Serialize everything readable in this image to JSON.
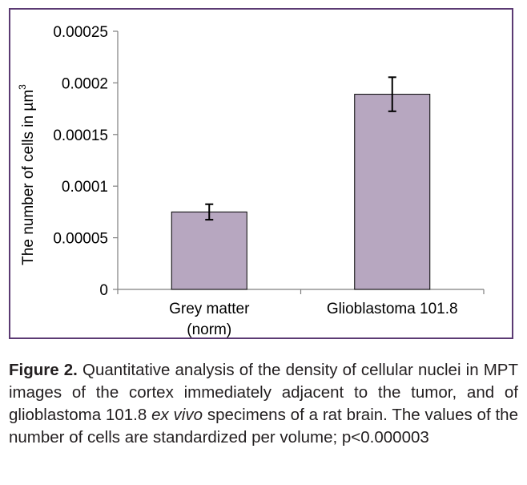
{
  "chart_data": {
    "type": "bar",
    "categories": [
      "Grey matter\n(norm)",
      "Glioblastoma 101.8"
    ],
    "values": [
      7.5e-05,
      0.000189
    ],
    "error": [
      7.5e-06,
      1.65e-05
    ],
    "ylabel": "The number of cells in µm",
    "ylabel_sup": "3",
    "ylim": [
      0,
      0.00025
    ],
    "yticks": [
      0,
      5e-05,
      0.0001,
      0.00015,
      0.0002,
      0.00025
    ],
    "ytick_labels": [
      "0",
      "0.00005",
      "0.0001",
      "0.00015",
      "0.0002",
      "0.00025"
    ],
    "bar_color": "#b7a7c0",
    "frame_color": "#5b3a73",
    "grid": false
  },
  "caption": {
    "label": "Figure 2.",
    "text_1": " Quantitative analysis of the density of cellular nuclei in MPT images of the cortex immediately adjacent to the tumor, and of glioblastoma 101.8 ",
    "italic": "ex vivo",
    "text_2": " specimens of a rat brain. The values of the number of cells are standardized per volume; p<0.000003"
  }
}
